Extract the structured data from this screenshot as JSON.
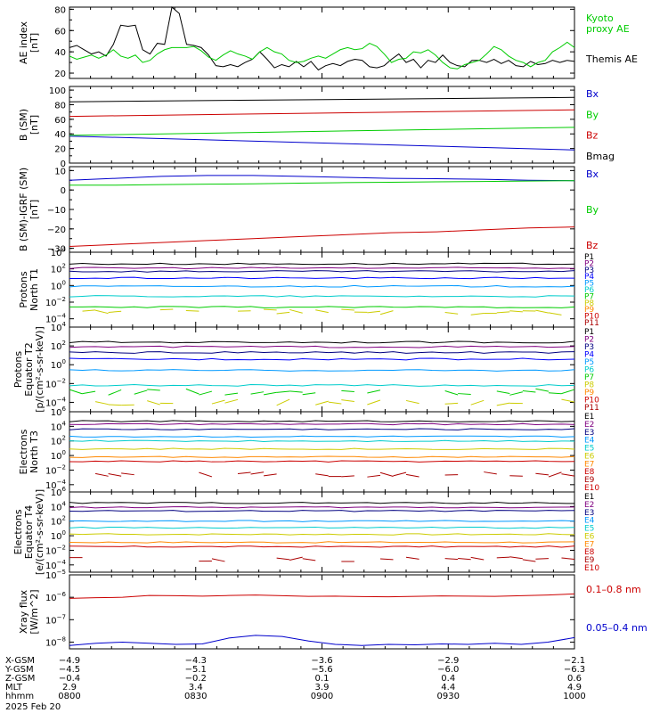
{
  "chart_data": {
    "type": "line",
    "footer": {
      "date_label": "2025 Feb 20"
    },
    "time_axis": {
      "row_labels": [
        "X-GSM",
        "Y-GSM",
        "Z-GSM",
        "MLT",
        "hhmm"
      ],
      "ticks": [
        {
          "x_gsm": "-4.9",
          "y_gsm": "-4.5",
          "z_gsm": "-0.4",
          "mlt": "2.9",
          "hhmm": "0800"
        },
        {
          "x_gsm": "-4.3",
          "y_gsm": "-5.1",
          "z_gsm": "-0.2",
          "mlt": "3.4",
          "hhmm": "0830"
        },
        {
          "x_gsm": "-3.6",
          "y_gsm": "-5.6",
          "z_gsm": "0.1",
          "mlt": "3.9",
          "hhmm": "0900"
        },
        {
          "x_gsm": "-2.9",
          "y_gsm": "-6.0",
          "z_gsm": "0.4",
          "mlt": "4.4",
          "hhmm": "0930"
        },
        {
          "x_gsm": "-2.1",
          "y_gsm": "-6.3",
          "z_gsm": "0.6",
          "mlt": "4.9",
          "hhmm": "1000"
        }
      ]
    },
    "panels": [
      {
        "id": "ae",
        "ylabel": [
          "AE index",
          "[nT]"
        ],
        "scale": "linear",
        "ylim": [
          15,
          82
        ],
        "yticks": [
          20,
          40,
          60,
          80
        ],
        "tick_labels": [
          "20",
          "40",
          "60",
          "80"
        ],
        "series": [
          {
            "name": "Themis AE",
            "color": "#000000",
            "values": [
              44,
              46,
              42,
              38,
              40,
              36,
              47,
              65,
              64,
              65,
              42,
              38,
              48,
              47,
              82,
              76,
              47,
              46,
              44,
              37,
              27,
              26,
              28,
              26,
              30,
              33,
              40,
              33,
              25,
              28,
              26,
              31,
              26,
              31,
              23,
              27,
              29,
              27,
              31,
              33,
              32,
              26,
              25,
              27,
              33,
              38,
              30,
              33,
              25,
              32,
              30,
              37,
              30,
              27,
              26,
              32,
              32,
              30,
              33,
              29,
              32,
              27,
              26,
              31,
              28,
              29,
              32,
              30,
              32,
              31
            ]
          },
          {
            "name": "Kyoto proxy AE",
            "color": "#00cc00",
            "values": [
              36,
              33,
              35,
              37,
              34,
              37,
              42,
              36,
              34,
              37,
              30,
              32,
              38,
              42,
              44,
              44,
              44,
              45,
              41,
              35,
              32,
              37,
              41,
              38,
              36,
              33,
              40,
              44,
              40,
              38,
              32,
              30,
              31,
              34,
              36,
              34,
              38,
              42,
              44,
              42,
              43,
              48,
              45,
              38,
              30,
              33,
              34,
              40,
              39,
              42,
              37,
              30,
              25,
              24,
              28,
              30,
              32,
              38,
              45,
              42,
              36,
              32,
              30,
              26,
              30,
              32,
              40,
              44,
              49,
              44
            ]
          }
        ]
      },
      {
        "id": "b",
        "ylabel": [
          "B (SM)",
          "[nT]"
        ],
        "scale": "linear",
        "ylim": [
          0,
          105
        ],
        "yticks": [
          0,
          20,
          40,
          60,
          80,
          100
        ],
        "tick_labels": [
          "0",
          "20",
          "40",
          "60",
          "80",
          "100"
        ],
        "series": [
          {
            "name": "Bx",
            "color": "#0000cc",
            "start": 37,
            "end": 18
          },
          {
            "name": "By",
            "color": "#00cc00",
            "start": 38,
            "end": 49
          },
          {
            "name": "Bz",
            "color": "#cc0000",
            "start": 64,
            "end": 73
          },
          {
            "name": "Bmag",
            "color": "#000000",
            "start": 84,
            "end": 90
          }
        ]
      },
      {
        "id": "db",
        "ylabel": [
          "B (SM)-IGRF (SM)",
          "[nT]"
        ],
        "scale": "linear",
        "ylim": [
          -32,
          12
        ],
        "yticks": [
          -30,
          -20,
          -10,
          0,
          10
        ],
        "tick_labels": [
          "−30",
          "−20",
          "−10",
          "0",
          "10"
        ],
        "series": [
          {
            "name": "Bx",
            "color": "#0000cc",
            "values": [
              5.0,
              6.0,
              7.0,
              7.5,
              7.5,
              7.0,
              6.5,
              6.0,
              5.8,
              5.5,
              5.0,
              4.8
            ]
          },
          {
            "name": "By",
            "color": "#00cc00",
            "values": [
              2.5,
              2.5,
              2.8,
              3.0,
              3.2,
              3.5,
              3.8,
              4.0,
              4.2,
              4.4,
              4.6,
              4.8
            ]
          },
          {
            "name": "Bz",
            "color": "#cc0000",
            "values": [
              -29.0,
              -28.0,
              -27.0,
              -26.0,
              -25.0,
              -24.0,
              -23.0,
              -22.0,
              -21.5,
              -20.5,
              -19.5,
              -19.0
            ]
          }
        ]
      },
      {
        "id": "pT1",
        "ylabel": [
          "Protons",
          "North T1"
        ],
        "scale": "log",
        "ylim_exp": [
          -5,
          4
        ],
        "tick_exps": [
          -4,
          -2,
          0,
          2,
          4
        ],
        "tick_base": "10",
        "channels": [
          {
            "name": "P1",
            "color": "#000000",
            "level": 2.6
          },
          {
            "name": "P2",
            "color": "#800080",
            "level": 2.1
          },
          {
            "name": "P3",
            "color": "#000080",
            "level": 1.7
          },
          {
            "name": "P4",
            "color": "#0000ff",
            "level": 0.9
          },
          {
            "name": "P5",
            "color": "#0099ff",
            "level": -0.1
          },
          {
            "name": "P6",
            "color": "#00cccc",
            "level": -1.3
          },
          {
            "name": "P7",
            "color": "#00cc00",
            "level": -2.6
          },
          {
            "name": "P8",
            "color": "#cccc00",
            "level": -3.2,
            "gappy": true
          },
          {
            "name": "P9",
            "color": "#ff8800"
          },
          {
            "name": "P10",
            "color": "#cc0000"
          },
          {
            "name": "P11",
            "color": "#aa0000"
          }
        ]
      },
      {
        "id": "pT2",
        "ylabel": [
          "Protons",
          "Equator T2",
          "[p/(cm²-s-sr-keV)]"
        ],
        "scale": "log",
        "ylim_exp": [
          -5,
          4
        ],
        "tick_exps": [
          -4,
          -2,
          0,
          2,
          4
        ],
        "tick_base": "10",
        "channels": [
          {
            "name": "P1",
            "color": "#000000",
            "level": 2.4
          },
          {
            "name": "P2",
            "color": "#800080",
            "level": 1.9
          },
          {
            "name": "P3",
            "color": "#000080",
            "level": 1.3
          },
          {
            "name": "P4",
            "color": "#0000ff",
            "level": 0.6
          },
          {
            "name": "P5",
            "color": "#0099ff",
            "level": -0.6
          },
          {
            "name": "P6",
            "color": "#00cccc",
            "level": -2.2
          },
          {
            "name": "P7",
            "color": "#00cc00",
            "level": -2.9,
            "gappy": true
          },
          {
            "name": "P8",
            "color": "#cccc00",
            "level": -4.0,
            "gappy": true
          },
          {
            "name": "P9",
            "color": "#ff8800"
          },
          {
            "name": "P10",
            "color": "#cc0000"
          },
          {
            "name": "P11",
            "color": "#aa0000"
          }
        ]
      },
      {
        "id": "eT3",
        "ylabel": [
          "Electrons",
          "North T3"
        ],
        "scale": "log",
        "ylim_exp": [
          -5,
          6
        ],
        "tick_exps": [
          -4,
          -2,
          0,
          2,
          4,
          6
        ],
        "tick_base": "10",
        "channels": [
          {
            "name": "E1",
            "color": "#000000",
            "level": 4.7
          },
          {
            "name": "E2",
            "color": "#800080",
            "level": 4.3
          },
          {
            "name": "E3",
            "color": "#000080",
            "level": 3.6
          },
          {
            "name": "E4",
            "color": "#0099ff",
            "level": 2.6
          },
          {
            "name": "E5",
            "color": "#00cccc",
            "level": 2.0
          },
          {
            "name": "E6",
            "color": "#cccc00",
            "level": 0.9
          },
          {
            "name": "E7",
            "color": "#ff8800",
            "level": -0.2
          },
          {
            "name": "E8",
            "color": "#cc0000",
            "level": -0.8
          },
          {
            "name": "E9",
            "color": "#aa0000",
            "level": -2.6,
            "gappy": true
          },
          {
            "name": "E10",
            "color": "#cc0000"
          }
        ]
      },
      {
        "id": "eT4",
        "ylabel": [
          "Electrons",
          "Equator T4",
          "[e/(cm²-s-sr-keV)]"
        ],
        "scale": "log",
        "ylim_exp": [
          -5,
          6
        ],
        "tick_exps": [
          -4,
          -2,
          0,
          2,
          4,
          6
        ],
        "tick_base": "10",
        "channels": [
          {
            "name": "E1",
            "color": "#000000",
            "level": 4.5
          },
          {
            "name": "E2",
            "color": "#800080",
            "level": 3.9
          },
          {
            "name": "E3",
            "color": "#000080",
            "level": 3.4
          },
          {
            "name": "E4",
            "color": "#0099ff",
            "level": 2.0
          },
          {
            "name": "E5",
            "color": "#00cccc",
            "level": 1.1
          },
          {
            "name": "E6",
            "color": "#cccc00",
            "level": 0.2
          },
          {
            "name": "E7",
            "color": "#ff8800",
            "level": -0.9
          },
          {
            "name": "E8",
            "color": "#cc0000",
            "level": -1.5
          },
          {
            "name": "E9",
            "color": "#aa0000",
            "level": -3.2,
            "gappy": true
          },
          {
            "name": "E10",
            "color": "#cc0000"
          }
        ]
      },
      {
        "id": "xray",
        "ylabel": [
          "Xray flux",
          "[W/m^2]"
        ],
        "scale": "log",
        "ylim_exp": [
          -8.3,
          -5
        ],
        "tick_exps": [
          -8,
          -7,
          -6,
          -5
        ],
        "tick_base": "10",
        "series": [
          {
            "name": "0.1–0.8 nm",
            "color": "#cc0000",
            "values": [
              -6.05,
              -6.02,
              -6.0,
              -5.92,
              -5.93,
              -5.95,
              -5.92,
              -5.9,
              -5.93,
              -5.96,
              -5.95,
              -5.97,
              -5.98,
              -5.96,
              -5.94,
              -5.95,
              -5.96,
              -5.93,
              -5.9,
              -5.85
            ]
          },
          {
            "name": "0.05–0.4 nm",
            "color": "#0000cc",
            "values": [
              -8.15,
              -8.05,
              -8.0,
              -8.05,
              -8.1,
              -8.08,
              -7.82,
              -7.7,
              -7.75,
              -7.95,
              -8.1,
              -8.15,
              -8.1,
              -8.12,
              -8.08,
              -8.1,
              -8.05,
              -8.1,
              -8.0,
              -7.8
            ]
          }
        ]
      }
    ]
  }
}
